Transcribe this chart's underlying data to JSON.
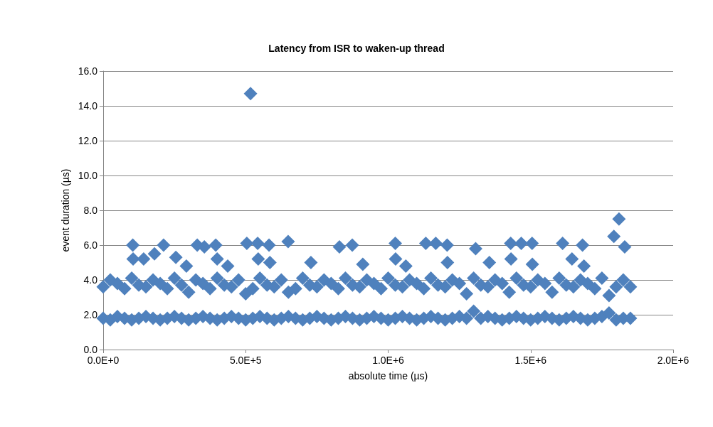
{
  "chart_data": {
    "type": "scatter",
    "title": "Latency from ISR to waken-up thread",
    "xlabel": "absolute time (µs)",
    "ylabel": "event duration (µs)",
    "xlim": [
      0,
      2000000
    ],
    "ylim": [
      0,
      16
    ],
    "xticks": [
      {
        "value": 0,
        "label": "0.0E+0"
      },
      {
        "value": 500000,
        "label": "5.0E+5"
      },
      {
        "value": 1000000,
        "label": "1.0E+6"
      },
      {
        "value": 1500000,
        "label": "1.5E+6"
      },
      {
        "value": 2000000,
        "label": "2.0E+6"
      }
    ],
    "yticks": [
      {
        "value": 0,
        "label": "0.0"
      },
      {
        "value": 2,
        "label": "2.0"
      },
      {
        "value": 4,
        "label": "4.0"
      },
      {
        "value": 6,
        "label": "6.0"
      },
      {
        "value": 8,
        "label": "8.0"
      },
      {
        "value": 10,
        "label": "10.0"
      },
      {
        "value": 12,
        "label": "12.0"
      },
      {
        "value": 14,
        "label": "14.0"
      },
      {
        "value": 16,
        "label": "16.0"
      }
    ],
    "grid": "y",
    "marker": "diamond",
    "series": [
      {
        "color": "#4f81bd",
        "x": [
          0,
          25000,
          50000,
          75000,
          100000,
          125000,
          150000,
          175000,
          200000,
          225000,
          250000,
          275000,
          300000,
          325000,
          350000,
          375000,
          400000,
          425000,
          450000,
          475000,
          500000,
          525000,
          550000,
          575000,
          600000,
          625000,
          650000,
          675000,
          700000,
          725000,
          750000,
          775000,
          800000,
          825000,
          850000,
          875000,
          900000,
          925000,
          950000,
          975000,
          1000000,
          1025000,
          1050000,
          1075000,
          1100000,
          1125000,
          1150000,
          1175000,
          1200000,
          1225000,
          1250000,
          1275000,
          1300000,
          1325000,
          1350000,
          1375000,
          1400000,
          1425000,
          1450000,
          1475000,
          1500000,
          1525000,
          1550000,
          1575000,
          1600000,
          1625000,
          1650000,
          1675000,
          1700000,
          1725000,
          1750000,
          1775000,
          1800000,
          1825000,
          1850000
        ],
        "values": [
          3.6,
          4.0,
          3.8,
          3.5,
          4.1,
          3.7,
          3.6,
          4.0,
          3.8,
          3.5,
          4.1,
          3.7,
          3.3,
          4.0,
          3.8,
          3.5,
          4.1,
          3.7,
          3.6,
          4.0,
          3.2,
          3.5,
          4.1,
          3.7,
          3.6,
          4.0,
          3.3,
          3.5,
          4.1,
          3.7,
          3.6,
          4.0,
          3.8,
          3.5,
          4.1,
          3.7,
          3.6,
          4.0,
          3.8,
          3.5,
          4.1,
          3.7,
          3.6,
          4.0,
          3.8,
          3.5,
          4.1,
          3.7,
          3.6,
          4.0,
          3.8,
          3.2,
          4.1,
          3.7,
          3.6,
          4.0,
          3.8,
          3.3,
          4.1,
          3.7,
          3.6,
          4.0,
          3.8,
          3.3,
          4.1,
          3.7,
          3.6,
          4.0,
          3.8,
          3.5,
          4.1,
          3.1,
          3.6,
          4.0,
          3.6
        ]
      },
      {
        "color": "#4f81bd",
        "x": [
          0,
          25000,
          50000,
          75000,
          100000,
          125000,
          150000,
          175000,
          200000,
          225000,
          250000,
          275000,
          300000,
          325000,
          350000,
          375000,
          400000,
          425000,
          450000,
          475000,
          500000,
          525000,
          550000,
          575000,
          600000,
          625000,
          650000,
          675000,
          700000,
          725000,
          750000,
          775000,
          800000,
          825000,
          850000,
          875000,
          900000,
          925000,
          950000,
          975000,
          1000000,
          1025000,
          1050000,
          1075000,
          1100000,
          1125000,
          1150000,
          1175000,
          1200000,
          1225000,
          1250000,
          1275000,
          1300000,
          1325000,
          1350000,
          1375000,
          1400000,
          1425000,
          1450000,
          1475000,
          1500000,
          1525000,
          1550000,
          1575000,
          1600000,
          1625000,
          1650000,
          1675000,
          1700000,
          1725000,
          1750000,
          1775000,
          1800000,
          1825000,
          1850000
        ],
        "values": [
          1.8,
          1.7,
          1.9,
          1.8,
          1.7,
          1.8,
          1.9,
          1.8,
          1.7,
          1.8,
          1.9,
          1.8,
          1.7,
          1.8,
          1.9,
          1.8,
          1.7,
          1.8,
          1.9,
          1.8,
          1.7,
          1.8,
          1.9,
          1.8,
          1.7,
          1.8,
          1.9,
          1.8,
          1.7,
          1.8,
          1.9,
          1.8,
          1.7,
          1.8,
          1.9,
          1.8,
          1.7,
          1.8,
          1.9,
          1.8,
          1.7,
          1.8,
          1.9,
          1.8,
          1.7,
          1.8,
          1.9,
          1.8,
          1.7,
          1.8,
          1.9,
          1.8,
          2.2,
          1.8,
          1.9,
          1.8,
          1.7,
          1.8,
          1.9,
          1.8,
          1.7,
          1.8,
          1.9,
          1.8,
          1.7,
          1.8,
          1.9,
          1.8,
          1.7,
          1.8,
          1.9,
          2.1,
          1.7,
          1.8,
          1.8
        ]
      },
      {
        "color": "#4f81bd",
        "x": [
          104000,
          105000,
          142000,
          180000,
          212000,
          255000,
          292000,
          330000,
          355000,
          395000,
          400000,
          437000,
          504000,
          517000,
          542000,
          544000,
          582000,
          585000,
          649000,
          729000,
          829000,
          874000,
          911000,
          1025000,
          1026000,
          1062000,
          1132000,
          1167000,
          1207000,
          1208000,
          1307000,
          1355000,
          1430000,
          1431000,
          1467000,
          1505000,
          1506000,
          1612000,
          1645000,
          1682000,
          1687000,
          1792000,
          1810000,
          1830000
        ],
        "values": [
          6.0,
          5.2,
          5.2,
          5.5,
          6.0,
          5.3,
          4.8,
          6.0,
          5.9,
          6.0,
          5.2,
          4.8,
          6.1,
          14.7,
          6.1,
          5.2,
          6.0,
          5.0,
          6.2,
          5.0,
          5.9,
          6.0,
          4.9,
          6.1,
          5.2,
          4.8,
          6.1,
          6.1,
          6.0,
          5.0,
          5.8,
          5.0,
          6.1,
          5.2,
          6.1,
          6.1,
          4.9,
          6.1,
          5.2,
          6.0,
          4.8,
          6.5,
          7.5,
          5.9
        ]
      }
    ]
  }
}
